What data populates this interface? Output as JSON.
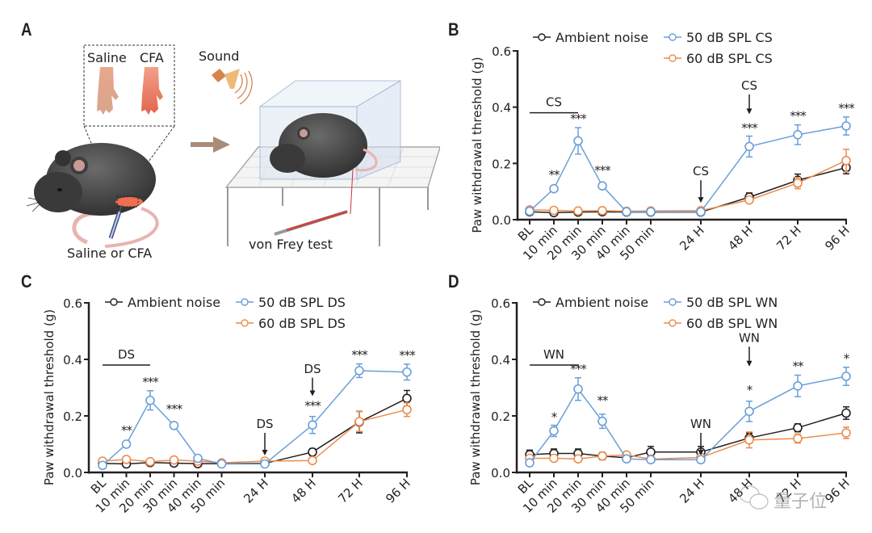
{
  "panel_a": {
    "letter": "A",
    "inset_labels": [
      "Saline",
      "CFA"
    ],
    "sound_label": "Sound",
    "injection_label": "Saline or CFA",
    "test_label": "von Frey test"
  },
  "watermark": "量子位",
  "colors": {
    "ambient": "#231f20",
    "db50": "#6a9fd8",
    "db60": "#ec8c4f"
  },
  "chart_data": [
    {
      "panel": "B",
      "type": "line",
      "ylabel": "Paw withdrawal threshold (g)",
      "xlabel": "",
      "ylim": [
        0,
        0.6
      ],
      "yticks": [
        "0.0",
        "0.2",
        "0.4",
        "0.6"
      ],
      "categories": [
        "BL",
        "10 min",
        "20 min",
        "30 min",
        "40 min",
        "50 min",
        "24 H",
        "48 H",
        "72 H",
        "96 H"
      ],
      "legend": "top",
      "series": [
        {
          "name": "Ambient noise",
          "color": "#231f20",
          "values": [
            0.028,
            0.025,
            0.027,
            0.028,
            0.027,
            0.027,
            0.027,
            0.08,
            0.14,
            0.185
          ],
          "errors": [
            0.004,
            0.004,
            0.004,
            0.004,
            0.004,
            0.004,
            0.004,
            0.015,
            0.022,
            0.022
          ]
        },
        {
          "name": "50 dB SPL CS",
          "color": "#6a9fd8",
          "values": [
            0.03,
            0.11,
            0.28,
            0.12,
            0.028,
            0.028,
            0.028,
            0.26,
            0.302,
            0.333
          ],
          "errors": [
            0.004,
            0.01,
            0.047,
            0.006,
            0.004,
            0.004,
            0.004,
            0.037,
            0.035,
            0.032
          ]
        },
        {
          "name": "60 dB SPL CS",
          "color": "#ec8c4f",
          "values": [
            0.035,
            0.033,
            0.031,
            0.032,
            0.03,
            0.031,
            0.032,
            0.07,
            0.13,
            0.21
          ],
          "errors": [
            0.004,
            0.004,
            0.004,
            0.004,
            0.004,
            0.004,
            0.004,
            0.008,
            0.02,
            0.04
          ]
        }
      ],
      "stim_label": "CS",
      "stim_bar_over": [
        "BL",
        "20 min"
      ],
      "arrows": [
        {
          "at": "24 H",
          "label": "CS"
        },
        {
          "at": "48 H",
          "label": "CS"
        }
      ],
      "significance": [
        {
          "at": "10 min",
          "label": "**"
        },
        {
          "at": "20 min",
          "label": "***"
        },
        {
          "at": "30 min",
          "label": "***"
        },
        {
          "at": "48 H",
          "label": "***"
        },
        {
          "at": "72 H",
          "label": "***"
        },
        {
          "at": "96 H",
          "label": "***"
        }
      ]
    },
    {
      "panel": "C",
      "type": "line",
      "ylabel": "Paw withdrawal threshold (g)",
      "xlabel": "",
      "ylim": [
        0,
        0.6
      ],
      "yticks": [
        "0.0",
        "0.2",
        "0.4",
        "0.6"
      ],
      "categories": [
        "BL",
        "10 min",
        "20 min",
        "30 min",
        "40 min",
        "50 min",
        "24 H",
        "48 H",
        "72 H",
        "96 H"
      ],
      "legend": "top",
      "series": [
        {
          "name": "Ambient noise",
          "color": "#231f20",
          "values": [
            0.032,
            0.03,
            0.035,
            0.033,
            0.031,
            0.031,
            0.032,
            0.072,
            0.178,
            0.262
          ],
          "errors": [
            0.004,
            0.004,
            0.004,
            0.004,
            0.004,
            0.004,
            0.004,
            0.012,
            0.038,
            0.028
          ]
        },
        {
          "name": "50 dB SPL DS",
          "color": "#6a9fd8",
          "values": [
            0.025,
            0.1,
            0.255,
            0.166,
            0.05,
            0.03,
            0.03,
            0.168,
            0.36,
            0.355
          ],
          "errors": [
            0.004,
            0.006,
            0.034,
            0.01,
            0.004,
            0.004,
            0.004,
            0.03,
            0.024,
            0.028
          ]
        },
        {
          "name": "60 dB SPL DS",
          "color": "#ec8c4f",
          "values": [
            0.04,
            0.046,
            0.038,
            0.044,
            0.04,
            0.034,
            0.04,
            0.042,
            0.18,
            0.222
          ],
          "errors": [
            0.004,
            0.004,
            0.004,
            0.004,
            0.004,
            0.004,
            0.004,
            0.004,
            0.035,
            0.024
          ]
        }
      ],
      "stim_label": "DS",
      "stim_bar_over": [
        "BL",
        "20 min"
      ],
      "arrows": [
        {
          "at": "24 H",
          "label": "DS"
        },
        {
          "at": "48 H",
          "label": "DS"
        }
      ],
      "significance": [
        {
          "at": "10 min",
          "label": "**"
        },
        {
          "at": "20 min",
          "label": "***"
        },
        {
          "at": "30 min",
          "label": "***"
        },
        {
          "at": "48 H",
          "label": "***"
        },
        {
          "at": "72 H",
          "label": "***"
        },
        {
          "at": "96 H",
          "label": "***"
        }
      ]
    },
    {
      "panel": "D",
      "type": "line",
      "ylabel": "Paw withdrawal threshold (g)",
      "xlabel": "",
      "ylim": [
        0,
        0.6
      ],
      "yticks": [
        "0.0",
        "0.2",
        "0.4",
        "0.6"
      ],
      "categories": [
        "BL",
        "10 min",
        "20 min",
        "30 min",
        "40 min",
        "50 min",
        "24 H",
        "48 H",
        "72 H",
        "96 H"
      ],
      "legend": "top",
      "series": [
        {
          "name": "Ambient noise",
          "color": "#231f20",
          "values": [
            0.063,
            0.067,
            0.067,
            0.058,
            0.052,
            0.072,
            0.072,
            0.122,
            0.158,
            0.21
          ],
          "errors": [
            0.016,
            0.016,
            0.016,
            0.012,
            0.01,
            0.02,
            0.02,
            0.017,
            0.014,
            0.022
          ]
        },
        {
          "name": "50 dB SPL WN",
          "color": "#6a9fd8",
          "values": [
            0.034,
            0.147,
            0.295,
            0.181,
            0.048,
            0.045,
            0.045,
            0.216,
            0.306,
            0.34
          ],
          "errors": [
            0.004,
            0.02,
            0.04,
            0.025,
            0.004,
            0.004,
            0.004,
            0.036,
            0.038,
            0.032
          ]
        },
        {
          "name": "60 dB SPL WN",
          "color": "#ec8c4f",
          "values": [
            0.05,
            0.05,
            0.048,
            0.058,
            0.062,
            0.047,
            0.053,
            0.115,
            0.12,
            0.14
          ],
          "errors": [
            0.004,
            0.004,
            0.004,
            0.004,
            0.004,
            0.004,
            0.004,
            0.028,
            0.016,
            0.02
          ]
        }
      ],
      "stim_label": "WN",
      "stim_bar_over": [
        "BL",
        "20 min"
      ],
      "arrows": [
        {
          "at": "24 H",
          "label": "WN"
        },
        {
          "at": "48 H",
          "label": "WN"
        }
      ],
      "significance": [
        {
          "at": "10 min",
          "label": "*"
        },
        {
          "at": "20 min",
          "label": "***"
        },
        {
          "at": "30 min",
          "label": "**"
        },
        {
          "at": "48 H",
          "label": "*"
        },
        {
          "at": "72 H",
          "label": "**"
        },
        {
          "at": "96 H",
          "label": "*"
        }
      ]
    }
  ]
}
